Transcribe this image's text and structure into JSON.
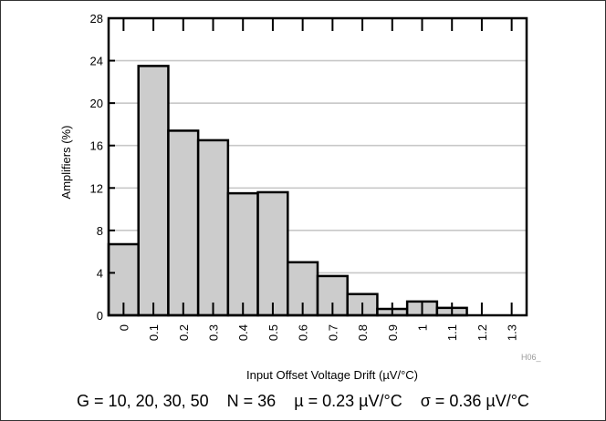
{
  "chart_data": {
    "type": "bar",
    "categories": [
      "0",
      "0.1",
      "0.2",
      "0.3",
      "0.4",
      "0.5",
      "0.6",
      "0.7",
      "0.8",
      "0.9",
      "1",
      "1.1",
      "1.2",
      "1.3"
    ],
    "values": [
      6.7,
      23.5,
      17.4,
      16.5,
      11.5,
      11.6,
      5.0,
      3.7,
      2.0,
      0.6,
      1.3,
      0.7,
      0,
      0
    ],
    "title": "",
    "xlabel": "Input Offset Voltage Drift (µV/°C)",
    "ylabel": "Amplifiers (%)",
    "ylim": [
      0,
      28
    ],
    "yticks": [
      0,
      4,
      8,
      12,
      16,
      20,
      24,
      28
    ],
    "grid": true,
    "legend": "none",
    "bar_color": "#cccccc",
    "edge_color": "#000000",
    "grid_color": "#c8c8c8"
  },
  "figure_code": "H06_",
  "footnote": "G = 10, 20, 30, 50    N = 36    µ = 0.23 µV/°C    σ = 0.36 µV/°C"
}
